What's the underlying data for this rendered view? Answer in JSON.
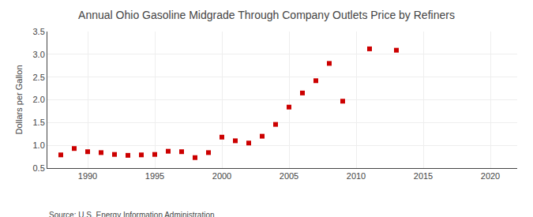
{
  "chart_data": {
    "type": "scatter",
    "title": "Annual Ohio Gasoline Midgrade Through Company Outlets Price by Refiners",
    "ylabel": "Dollars per Gallon",
    "annotations": [
      "Source: U.S. Energy Information Administration"
    ],
    "x": [
      1988,
      1989,
      1990,
      1991,
      1992,
      1993,
      1994,
      1995,
      1996,
      1997,
      1998,
      1999,
      2000,
      2001,
      2002,
      2003,
      2004,
      2005,
      2006,
      2007,
      2008,
      2009,
      2011,
      2013
    ],
    "values": [
      0.79,
      0.93,
      0.86,
      0.84,
      0.8,
      0.78,
      0.79,
      0.8,
      0.87,
      0.86,
      0.73,
      0.84,
      1.18,
      1.1,
      1.05,
      1.2,
      1.46,
      1.84,
      2.15,
      2.42,
      2.8,
      1.97,
      3.12,
      3.09
    ],
    "color": "#cc0000",
    "marker": "square",
    "xlim": [
      1987,
      2022
    ],
    "ylim": [
      0.5,
      3.5
    ],
    "xticks": [
      1990,
      1995,
      2000,
      2005,
      2010,
      2015,
      2020
    ],
    "yticks": [
      0.5,
      {
        "value": 1.0,
        "label": "1.0"
      },
      1.5,
      {
        "value": 2.0,
        "label": "2.0"
      },
      2.5,
      {
        "value": 3.0,
        "label": "3.0"
      },
      3.5
    ],
    "grid": true
  }
}
